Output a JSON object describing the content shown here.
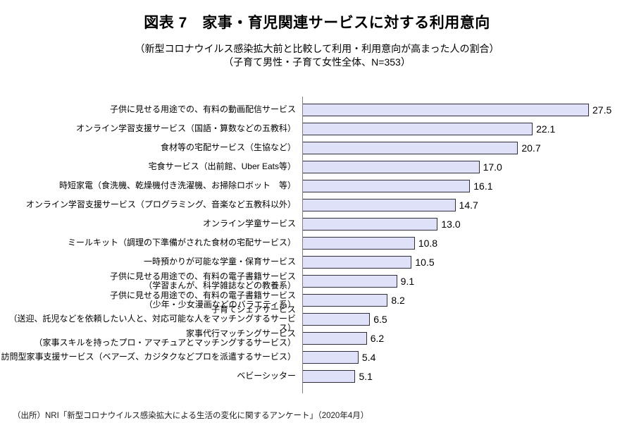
{
  "header": {
    "title": "図表 7　家事・育児関連サービスに対する利用意向",
    "subtitle_line1": "（新型コロナウイルス感染拡大前と比較して利用・利用意向が高まった人の割合）",
    "subtitle_line2": "（子育て男性・子育て女性全体、N=353）"
  },
  "footer": {
    "source": "（出所）NRI「新型コロナウイルス感染拡大による生活の変化に関するアンケート」（2020年4月）"
  },
  "chart_data": {
    "type": "bar",
    "orientation": "horizontal",
    "title": "家事・育児関連サービスに対する利用意向",
    "xlim": [
      0,
      30
    ],
    "grid": false,
    "legend": "none",
    "categories": [
      "子供に見せる用途での、有料の動画配信サービス",
      "オンライン学習支援サービス（国語・算数などの五教科）",
      "食材等の宅配サービス（生協など）",
      "宅食サービス（出前館、Uber Eats等）",
      "時短家電（食洗機、乾燥機付き洗濯機、お掃除ロボット　等）",
      "オンライン学習支援サービス（プログラミング、音楽など五教科以外）",
      "オンライン学童サービス",
      "ミールキット（調理の下準備がされた食材の宅配サービス）",
      "一時預かりが可能な学童・保育サービス",
      "子供に見せる用途での、有料の電子書籍サービス\n（学習まんが、科学雑誌などの教養系）",
      "子供に見せる用途での、有料の電子書籍サービス\n（少年・少女漫画などのバラエティ系）",
      "子育てシェアサービス\n（送迎、託児などを依頼したい人と、対応可能な人をマッチングするサービス）",
      "家事代行マッチングサービス\n（家事スキルを持ったプロ・アマチュアとマッチングするサービス）",
      "訪問型家事支援サービス（ベアーズ、カジタクなどプロを派遣するサービス）",
      "ベビーシッター"
    ],
    "values": [
      27.5,
      22.1,
      20.7,
      17.0,
      16.1,
      14.7,
      13.0,
      10.8,
      10.5,
      9.1,
      8.2,
      6.5,
      6.2,
      5.4,
      5.1
    ],
    "value_labels": [
      "27.5",
      "22.1",
      "20.7",
      "17.0",
      "16.1",
      "14.7",
      "13.0",
      "10.8",
      "10.5",
      "9.1",
      "8.2",
      "6.5",
      "6.2",
      "5.4",
      "5.1"
    ],
    "colors": {
      "bar_fill": "#dfe1f8",
      "bar_border": "#2e2e3c",
      "axis_line": "#808080",
      "text": "#000000"
    }
  }
}
